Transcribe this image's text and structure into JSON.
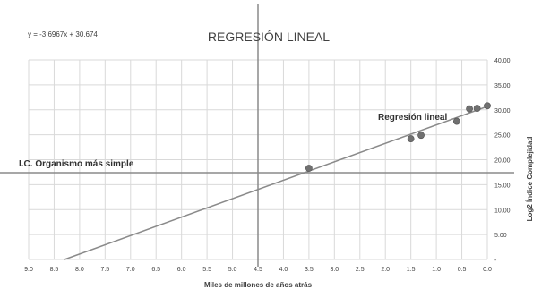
{
  "chart_data": {
    "type": "scatter",
    "title": "REGRESIÓN LINEAL",
    "equation": "y = -3.6967x + 30.674",
    "xlabel": "Miles de millones de años atrás",
    "ylabel": "Log2 Índice Complejidad",
    "x_reversed": true,
    "xlim": [
      0,
      9
    ],
    "ylim": [
      0,
      40
    ],
    "grid": true,
    "x_ticks": [
      "9.0",
      "8.5",
      "8.0",
      "7.5",
      "7.0",
      "6.5",
      "6.0",
      "5.5",
      "5.0",
      "4.5",
      "4.0",
      "3.5",
      "3.0",
      "2.5",
      "2.0",
      "1.5",
      "1.0",
      "0.5",
      "0.0"
    ],
    "y_ticks": [
      "-",
      "5.00",
      "10.00",
      "15.00",
      "20.00",
      "25.00",
      "30.00",
      "35.00",
      "40.00"
    ],
    "points": {
      "x": [
        3.5,
        1.5,
        1.3,
        0.6,
        0.35,
        0.2,
        0.0
      ],
      "y": [
        18.3,
        24.2,
        24.9,
        27.7,
        30.2,
        30.3,
        30.8
      ]
    },
    "regression": {
      "slope": -3.6967,
      "intercept": 30.674,
      "label": "Regresión lineal"
    },
    "reference_lines": [
      {
        "axis": "y",
        "value": 17.4,
        "label": "I.C. Organismo más simple"
      },
      {
        "axis": "x",
        "value": 4.5
      }
    ],
    "colors": {
      "point": "#707070",
      "line": "#8a8a8a",
      "grid": "#d9d9d9",
      "text": "#404040"
    }
  }
}
